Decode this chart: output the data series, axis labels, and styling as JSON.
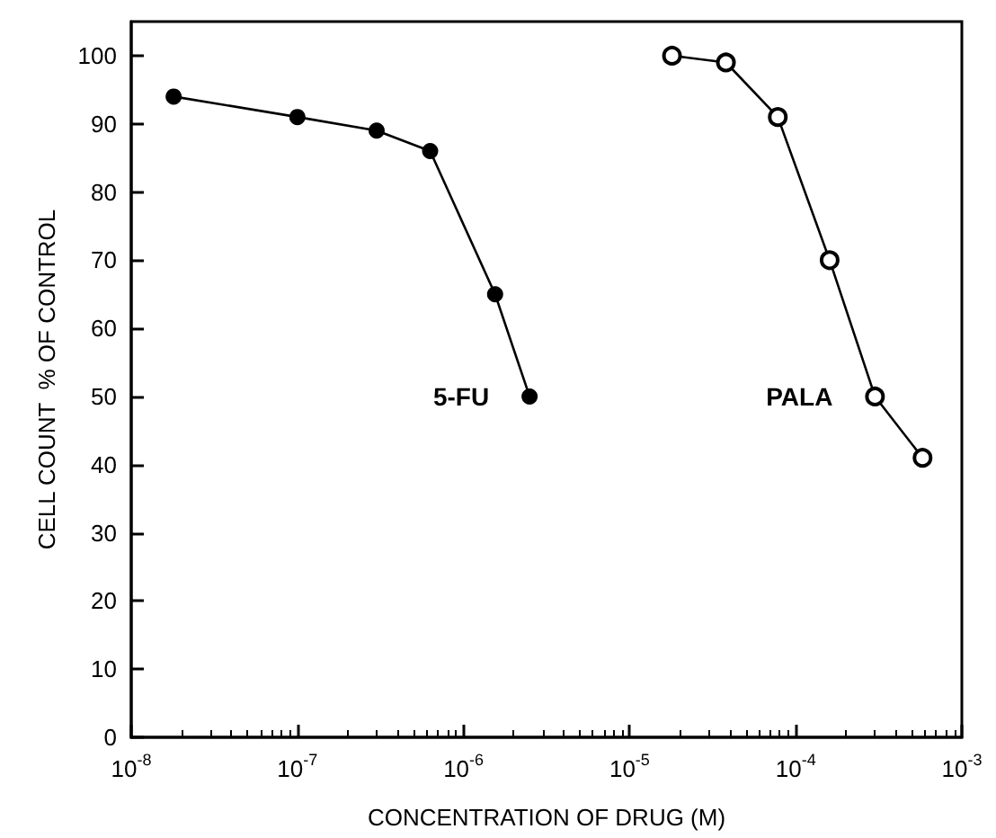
{
  "chart_data": {
    "type": "line",
    "xlabel": "CONCENTRATION OF DRUG (M)",
    "ylabel": "CELL COUNT  % OF CONTROL",
    "log": "x",
    "grid": false,
    "legend": false,
    "marker": "circle",
    "line_style": "solid",
    "xlim": [
      1e-08,
      0.001
    ],
    "xticks": [
      {
        "value": 1e-08,
        "label": "10$^{-8}$"
      },
      {
        "value": 1e-07,
        "label": "10$^{-7}$"
      },
      {
        "value": 1e-06,
        "label": "10$^{-6}$"
      },
      {
        "value": 1e-05,
        "label": "10$^{-5}$"
      },
      {
        "value": 0.0001,
        "label": "10$^{-4}$"
      },
      {
        "value": 0.001,
        "label": "10$^{-3}$"
      }
    ],
    "ylim": [
      0,
      105
    ],
    "yticks": [
      0,
      10,
      20,
      30,
      40,
      50,
      60,
      70,
      80,
      90,
      100
    ],
    "series": [
      {
        "name": "5-FU",
        "color": "#000000",
        "x": [
          1.8e-08,
          1e-07,
          3e-07,
          6.3e-07,
          1.55e-06,
          2.5e-06
        ],
        "values": [
          94,
          91,
          89,
          86,
          65,
          50
        ]
      },
      {
        "name": "PALA",
        "color": "#000000",
        "x": [
          1.8e-05,
          3.8e-05,
          7.8e-05,
          0.00016,
          0.0003,
          0.00058
        ],
        "values": [
          100,
          99,
          91,
          70,
          50,
          41
        ]
      }
    ]
  }
}
